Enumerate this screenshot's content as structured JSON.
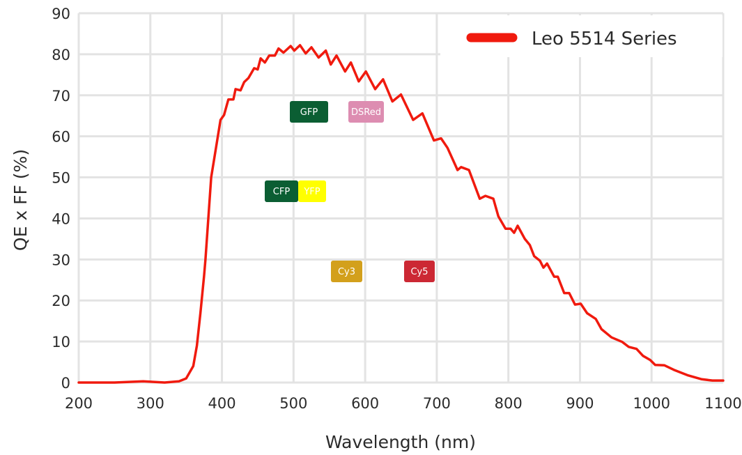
{
  "chart_data": {
    "type": "line",
    "title": "",
    "xlabel": "Wavelength (nm)",
    "ylabel": "QE x FF (%)",
    "xlim": [
      200,
      1100
    ],
    "ylim": [
      0,
      90
    ],
    "x_ticks": [
      "200",
      "300",
      "400",
      "500",
      "600",
      "700",
      "800",
      "900",
      "1000",
      "1100"
    ],
    "y_ticks": [
      "0",
      "10",
      "20",
      "30",
      "40",
      "50",
      "60",
      "70",
      "80",
      "90"
    ],
    "grid": true,
    "legend_position": "top-right",
    "series": [
      {
        "name": "Leo 5514 Series",
        "color": "#f01a0e",
        "x": [
          200,
          250,
          290,
          320,
          340,
          350,
          360,
          365,
          370,
          375,
          377,
          385,
          392,
          398,
          403,
          409,
          416,
          419,
          426,
          431,
          437,
          445,
          450,
          454,
          460,
          466,
          474,
          479,
          486,
          496,
          501,
          509,
          517,
          525,
          535,
          545,
          552,
          560,
          572,
          580,
          591,
          601,
          614,
          625,
          638,
          650,
          667,
          680,
          696,
          706,
          715,
          729,
          734,
          745,
          760,
          768,
          779,
          786,
          796,
          803,
          808,
          813,
          823,
          830,
          836,
          844,
          849,
          854,
          864,
          869,
          878,
          885,
          893,
          901,
          910,
          922,
          930,
          944,
          959,
          968,
          979,
          988,
          998,
          1005,
          1018,
          1031,
          1050,
          1070,
          1085,
          1100
        ],
        "y": [
          0,
          0,
          0.3,
          0,
          0.3,
          1,
          4,
          9,
          17,
          26,
          30,
          50,
          57.5,
          64,
          65.2,
          69,
          69,
          71.5,
          71.2,
          73.2,
          74.2,
          76.6,
          76.3,
          79,
          78,
          79.7,
          79.7,
          81.4,
          80.4,
          82,
          80.9,
          82.2,
          80.2,
          81.7,
          79.2,
          80.9,
          77.5,
          79.7,
          75.8,
          78,
          73.4,
          75.8,
          71.5,
          73.9,
          68.5,
          70.2,
          64,
          65.6,
          59,
          59.5,
          57.2,
          51.8,
          52.5,
          51.8,
          44.8,
          45.5,
          44.8,
          40.5,
          37.5,
          37.5,
          36.5,
          38.2,
          35,
          33.5,
          30.8,
          29.7,
          28,
          29,
          25.8,
          25.8,
          21.8,
          21.8,
          19,
          19.2,
          16.9,
          15.5,
          13,
          11,
          9.9,
          8.7,
          8.2,
          6.5,
          5.5,
          4.3,
          4.2,
          3.1,
          1.8,
          0.8,
          0.5,
          0.5
        ]
      }
    ],
    "annotations": [
      {
        "label": "GFP",
        "color": "#0b5e33"
      },
      {
        "label": "DSRed",
        "color": "#dd8db1"
      },
      {
        "label": "CFP",
        "color": "#0b5e33"
      },
      {
        "label": "YFP",
        "color": "#ffff00"
      },
      {
        "label": "Cy3",
        "color": "#d3a01c"
      },
      {
        "label": "Cy5",
        "color": "#cc2834"
      }
    ]
  }
}
